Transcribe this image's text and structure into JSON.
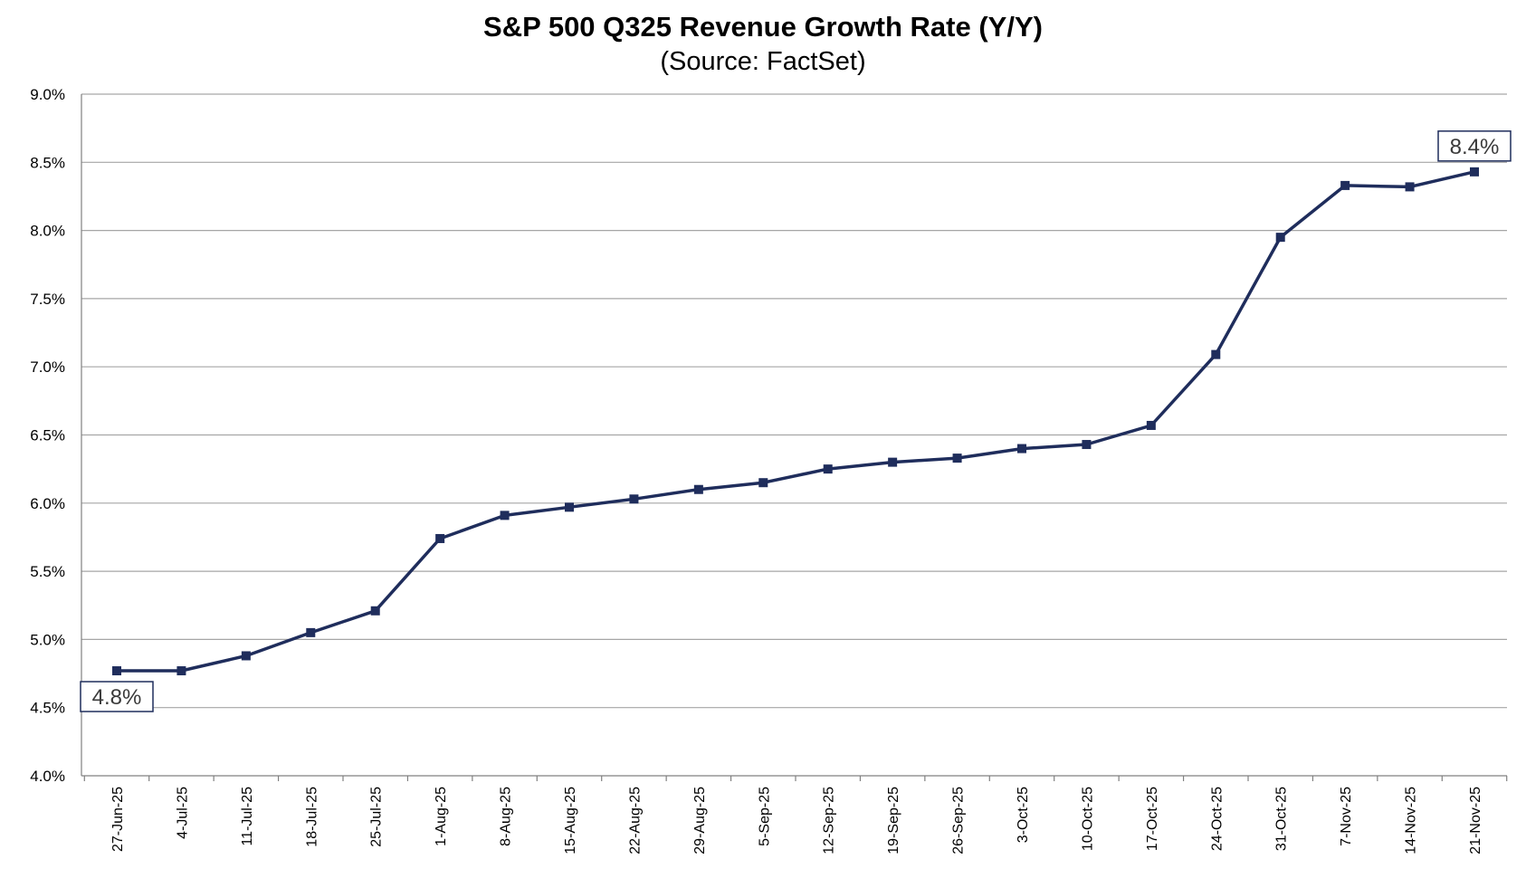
{
  "chart_data": {
    "type": "line",
    "title": "S&P 500 Q325 Revenue Growth Rate (Y/Y)",
    "subtitle": "(Source: FactSet)",
    "xlabel": "",
    "ylabel": "",
    "ylim": [
      4.0,
      9.0
    ],
    "ytick_values": [
      4.0,
      4.5,
      5.0,
      5.5,
      6.0,
      6.5,
      7.0,
      7.5,
      8.0,
      8.5,
      9.0
    ],
    "ytick_labels": [
      "4.0%",
      "4.5%",
      "5.0%",
      "5.5%",
      "6.0%",
      "6.5%",
      "7.0%",
      "7.5%",
      "8.0%",
      "8.5%",
      "9.0%"
    ],
    "grid": true,
    "legend": "none",
    "categories": [
      "27-Jun-25",
      "4-Jul-25",
      "11-Jul-25",
      "18-Jul-25",
      "25-Jul-25",
      "1-Aug-25",
      "8-Aug-25",
      "15-Aug-25",
      "22-Aug-25",
      "29-Aug-25",
      "5-Sep-25",
      "12-Sep-25",
      "19-Sep-25",
      "26-Sep-25",
      "3-Oct-25",
      "10-Oct-25",
      "17-Oct-25",
      "24-Oct-25",
      "31-Oct-25",
      "7-Nov-25",
      "14-Nov-25",
      "21-Nov-25"
    ],
    "series": [
      {
        "color": "#1f2d5c",
        "values": [
          4.77,
          4.77,
          4.88,
          5.05,
          5.21,
          5.74,
          5.91,
          5.97,
          6.03,
          6.1,
          6.15,
          6.25,
          6.3,
          6.33,
          6.4,
          6.43,
          6.57,
          7.09,
          7.95,
          8.33,
          8.32,
          8.43
        ]
      }
    ],
    "annotations": [
      {
        "text": "4.8%",
        "category_index": 0,
        "position": "below"
      },
      {
        "text": "8.4%",
        "category_index": 21,
        "position": "above"
      }
    ],
    "colors": {
      "line": "#1f2d5c",
      "grid": "#a6a6a6",
      "axis": "#808080",
      "annotation_border": "#1f2d5c",
      "annotation_text": "#3a3a3a"
    }
  }
}
